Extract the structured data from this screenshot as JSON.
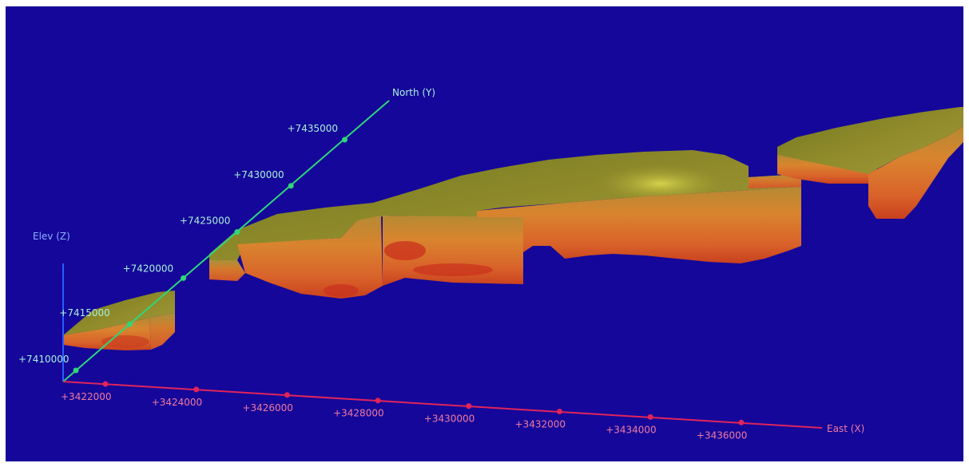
{
  "viewport": {
    "background": "#15079a"
  },
  "axes": {
    "north": {
      "label": "North (Y)",
      "color": "#2fd67a",
      "label_color": "#a8f0d8",
      "ticks": [
        "+7410000",
        "+7415000",
        "+7420000",
        "+7425000",
        "+7430000",
        "+7435000"
      ]
    },
    "east": {
      "label": "East (X)",
      "color": "#e0245a",
      "label_color": "#f07aa0",
      "ticks": [
        "+3422000",
        "+3424000",
        "+3426000",
        "+3428000",
        "+3430000",
        "+3432000",
        "+3434000",
        "+3436000"
      ]
    },
    "elev": {
      "label": "Elev (Z)",
      "color": "#2a5cff",
      "label_color": "#8fb0ff"
    }
  },
  "model": {
    "top_color": "#8f8a2a",
    "side_color": "#d9742a",
    "deep_color": "#c9301c"
  }
}
